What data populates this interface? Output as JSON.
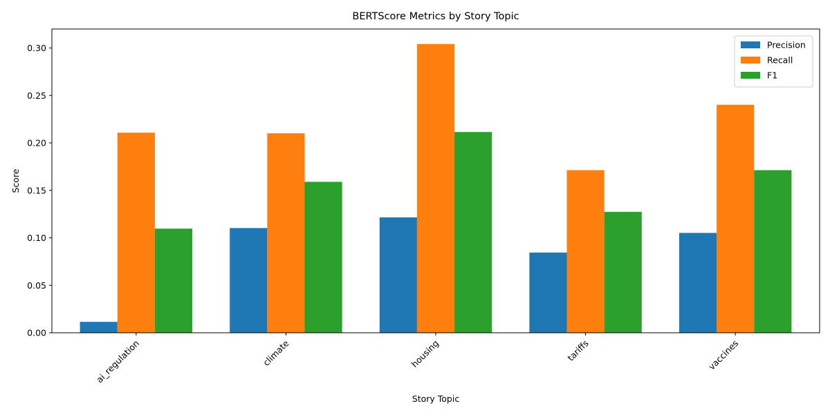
{
  "chart_data": {
    "type": "bar",
    "title": "BERTScore Metrics by Story Topic",
    "xlabel": "Story Topic",
    "ylabel": "Score",
    "categories": [
      "ai_regulation",
      "climate",
      "housing",
      "tariffs",
      "vaccines"
    ],
    "series": [
      {
        "name": "Precision",
        "color": "#1f77b4",
        "values": [
          0.0115,
          0.1103,
          0.1216,
          0.0845,
          0.1052
        ]
      },
      {
        "name": "Recall",
        "color": "#ff7f0e",
        "values": [
          0.2108,
          0.2101,
          0.3042,
          0.1713,
          0.2402
        ]
      },
      {
        "name": "F1",
        "color": "#2ca02c",
        "values": [
          0.1097,
          0.159,
          0.2115,
          0.1274,
          0.1713
        ]
      }
    ],
    "ylim": [
      0,
      0.32
    ],
    "yticks": [
      0.0,
      0.05,
      0.1,
      0.15,
      0.2,
      0.25,
      0.3
    ],
    "ytick_labels": [
      "0.00",
      "0.05",
      "0.10",
      "0.15",
      "0.20",
      "0.25",
      "0.30"
    ],
    "grid": false,
    "legend_position": "top-right"
  }
}
